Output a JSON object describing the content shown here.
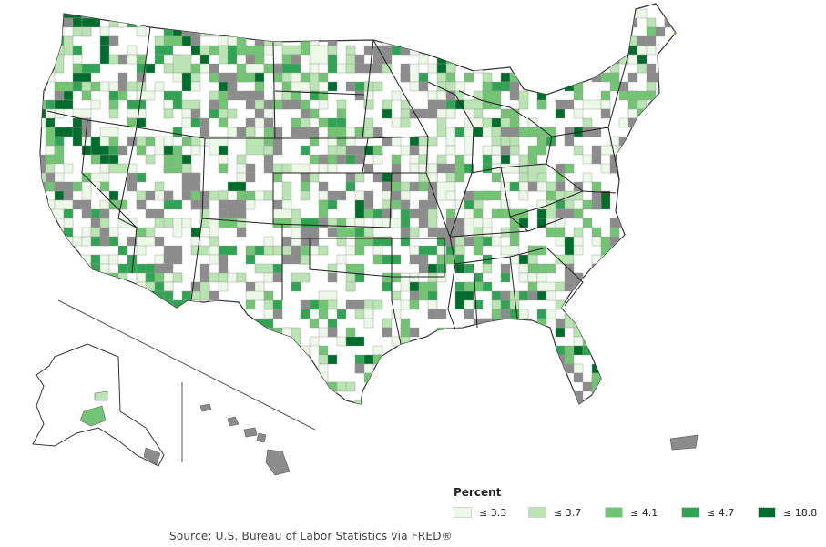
{
  "legend": {
    "title": "Percent",
    "items": [
      {
        "label": "≤ 3.3",
        "color": "#edf8e9"
      },
      {
        "label": "≤ 3.7",
        "color": "#bae4b3"
      },
      {
        "label": "≤ 4.1",
        "color": "#74c476"
      },
      {
        "label": "≤ 4.7",
        "color": "#31a354"
      },
      {
        "label": "≤ 18.8",
        "color": "#006d2c"
      }
    ],
    "nodata_color": "#8c8c8c"
  },
  "source": "Source: U.S. Bureau of Labor Statistics via FRED®"
}
